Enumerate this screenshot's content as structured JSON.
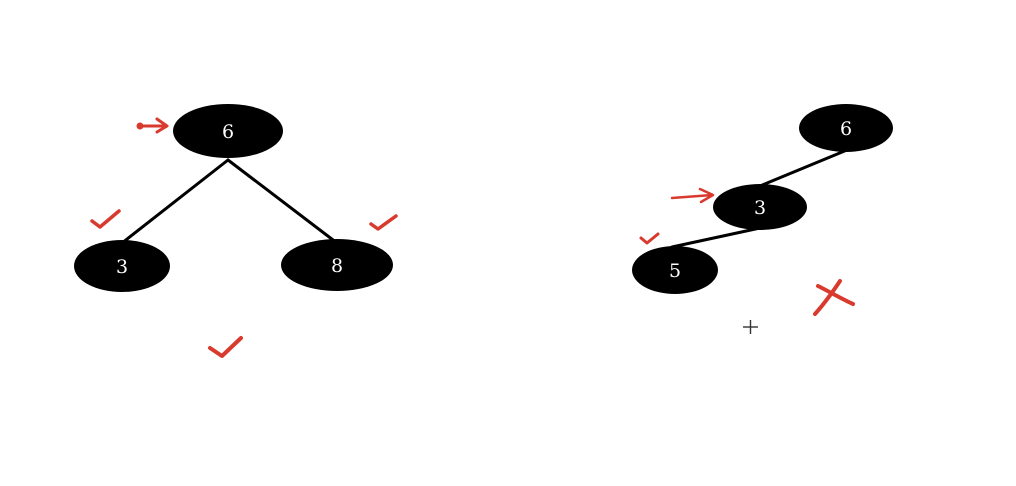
{
  "colors": {
    "background": "#ffffff",
    "node_fill": "#000000",
    "node_text": "#ffffff",
    "edge": "#000000",
    "annotation": "#d93a2e",
    "cursor": "#333333"
  },
  "left_tree": {
    "root": {
      "value": "6"
    },
    "left_child": {
      "value": "3"
    },
    "right_child": {
      "value": "8"
    }
  },
  "right_tree": {
    "root": {
      "value": "6"
    },
    "middle": {
      "value": "3"
    },
    "leaf": {
      "value": "5"
    }
  },
  "annotations": {
    "left_arrow_icon": "pointer-arrow-icon",
    "right_arrow_icon": "pointer-arrow-icon",
    "check_icon": "checkmark-icon",
    "cross_icon": "cross-mark-icon",
    "cursor_icon": "crosshair-cursor-icon"
  }
}
